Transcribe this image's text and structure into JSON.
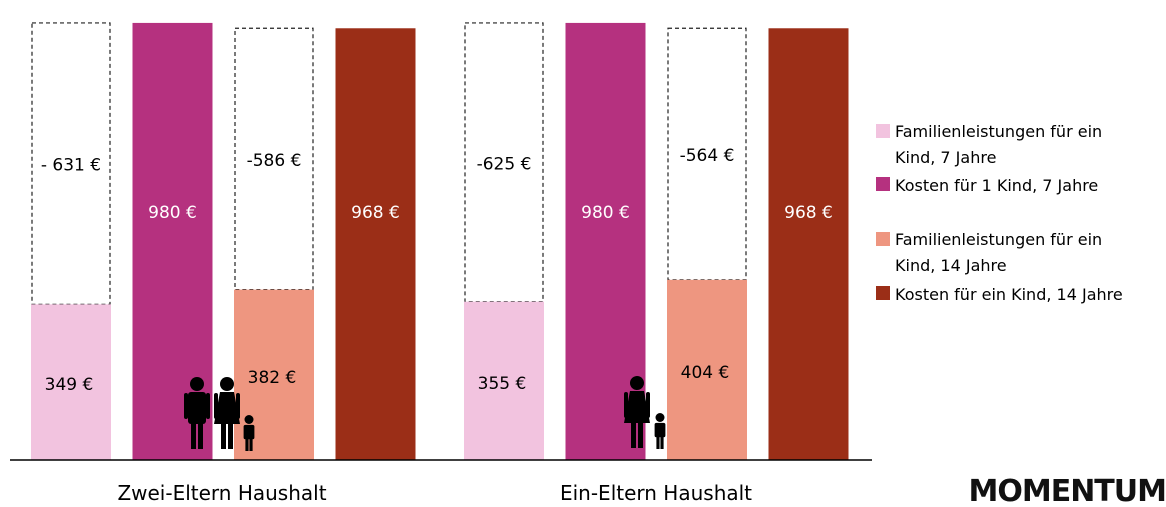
{
  "chart_data": {
    "type": "bar",
    "categories": [
      "Zwei-Eltern Haushalt",
      "Ein-Eltern Haushalt"
    ],
    "ylim": [
      0,
      1000
    ],
    "series": [
      {
        "name": "Familienleistungen für ein Kind, 7 Jahre",
        "color": "#f2c3df",
        "values": [
          349,
          355
        ],
        "gap_labels": [
          "- 631 €",
          "-625 €"
        ]
      },
      {
        "name": "Kosten für 1 Kind, 7 Jahre",
        "color": "#b5317f",
        "values": [
          980,
          980
        ]
      },
      {
        "name": "Familienleistungen für ein Kind, 14 Jahre",
        "color": "#ee9680",
        "values": [
          382,
          404
        ],
        "gap_labels": [
          "-586 €",
          "-564 €"
        ]
      },
      {
        "name": "Kosten für ein Kind, 14 Jahre",
        "color": "#9b2e17",
        "values": [
          968,
          968
        ]
      }
    ],
    "value_labels": [
      [
        "349 €",
        "355 €"
      ],
      [
        "980 €",
        "980 €"
      ],
      [
        "382 €",
        "404 €"
      ],
      [
        "968 €",
        "968 €"
      ]
    ],
    "icons": [
      "two-parents-family-icon",
      "single-parent-family-icon"
    ],
    "legend_position": "right",
    "grid": false
  },
  "legend": {
    "items": [
      {
        "line1": "Familienleistungen für ein",
        "line2": "Kind, 7 Jahre",
        "color": "#f2c3df"
      },
      {
        "line1": "Kosten für 1 Kind, 7 Jahre",
        "line2": "",
        "color": "#b5317f"
      },
      {
        "line1": "Familienleistungen für ein",
        "line2": "Kind, 14 Jahre",
        "color": "#ee9680"
      },
      {
        "line1": "Kosten für ein Kind, 14 Jahre",
        "line2": "",
        "color": "#9b2e17"
      }
    ]
  },
  "brand": {
    "logo_text": "MOMENTUM"
  }
}
